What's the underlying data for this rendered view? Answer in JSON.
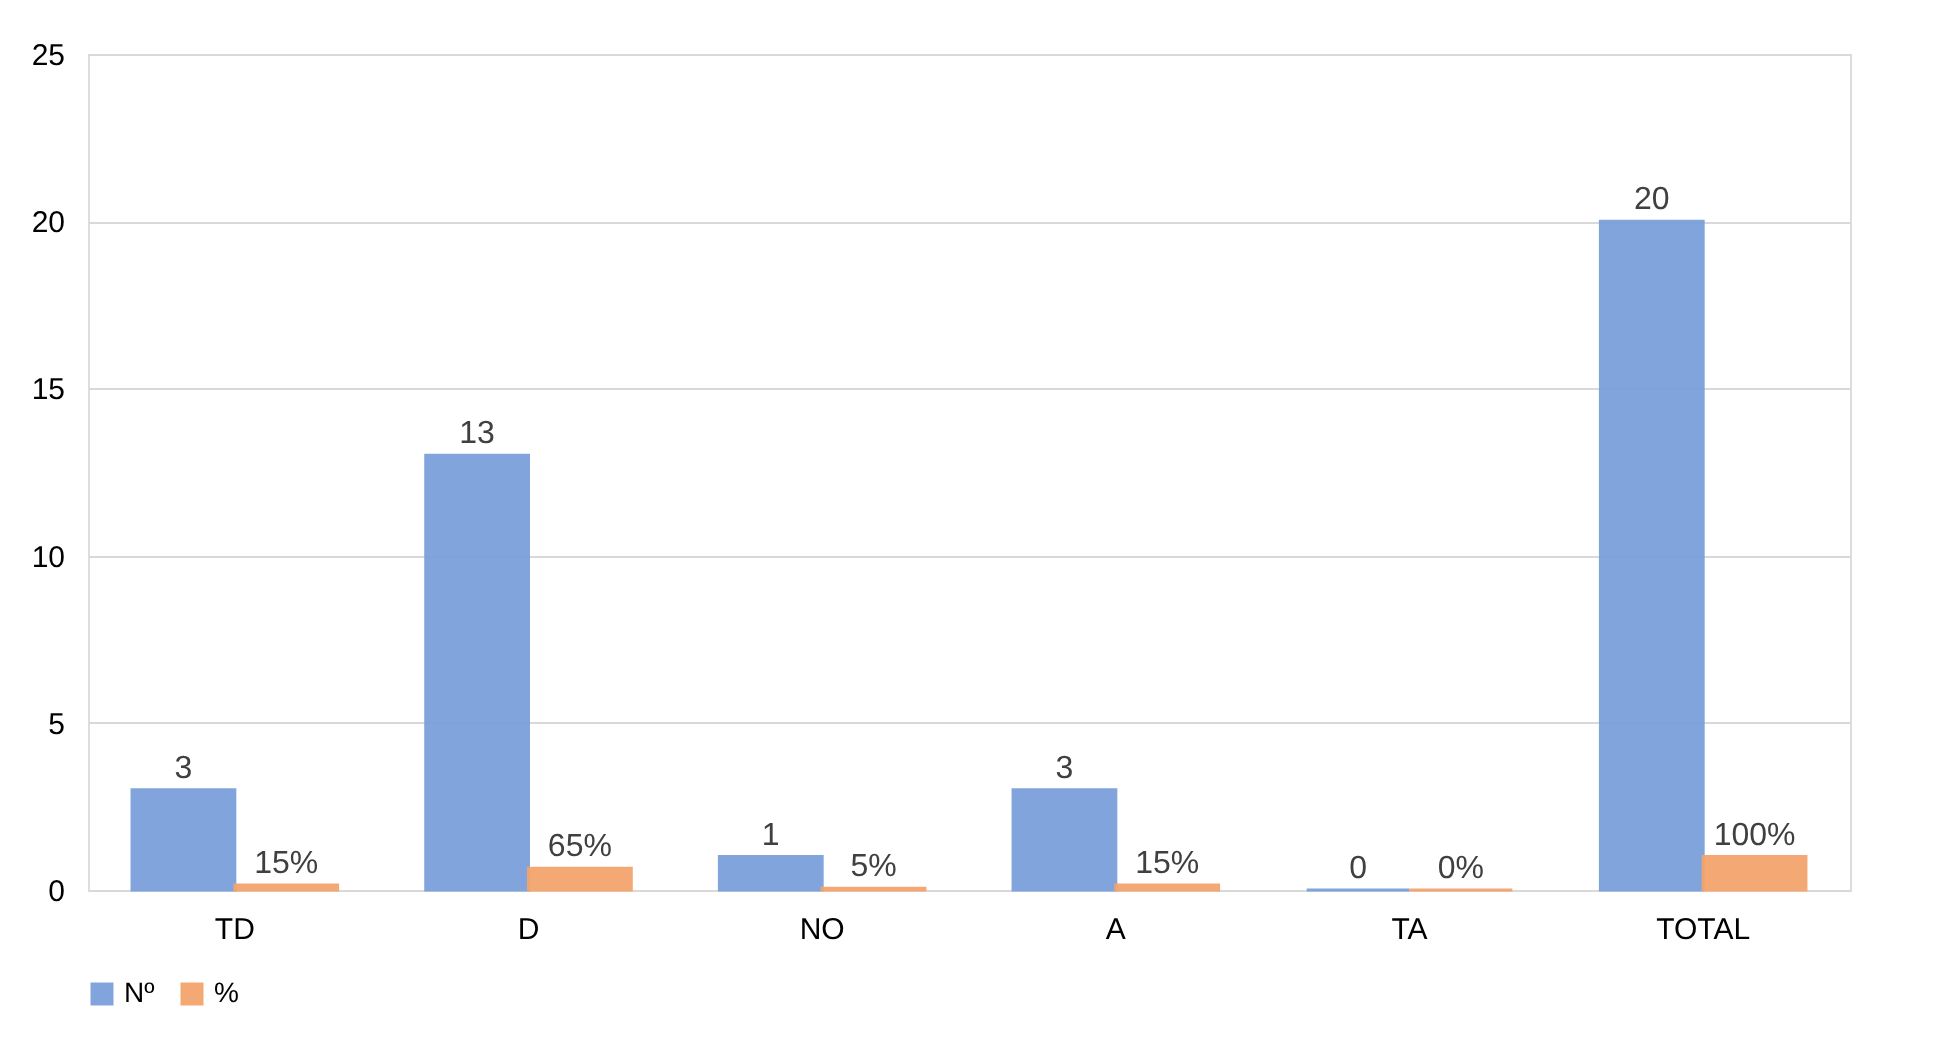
{
  "chart_data": {
    "type": "bar",
    "categories": [
      "TD",
      "D",
      "NO",
      "A",
      "TA",
      "TOTAL"
    ],
    "series": [
      {
        "name": "Nº",
        "color": "#7ba0db",
        "values": [
          3,
          13,
          1,
          3,
          0,
          20
        ],
        "value_labels": [
          "3",
          "13",
          "1",
          "3",
          "0",
          "20"
        ]
      },
      {
        "name": "%",
        "color": "#f4a46c",
        "values": [
          0.15,
          0.65,
          0.05,
          0.15,
          0,
          1
        ],
        "value_labels": [
          "15%",
          "65%",
          "5%",
          "15%",
          "0%",
          "100%"
        ]
      }
    ],
    "ylim": [
      0,
      25
    ],
    "yticks": [
      0,
      5,
      10,
      15,
      20,
      25
    ],
    "grid": "y",
    "legend": "bottom"
  }
}
